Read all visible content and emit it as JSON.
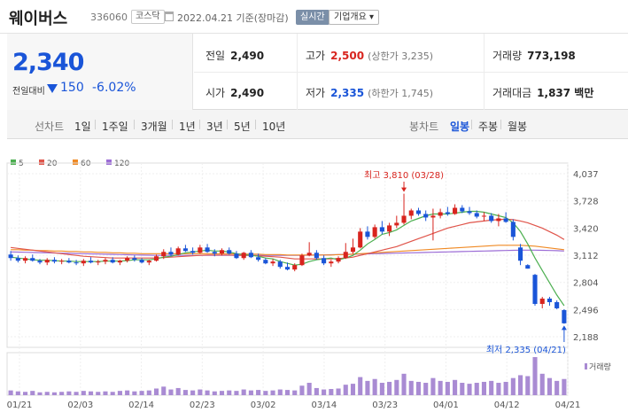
{
  "header": {
    "name": "웨이버스",
    "code": "336060",
    "market": "코스닥",
    "date": "2022.04.21 기준(장마감)",
    "realtime_label": "실시간",
    "company_info_label": "기업개요 ▾"
  },
  "price": {
    "current": "2,340",
    "change_label": "전일대비",
    "change": "150",
    "change_pct": "-6.02%",
    "prev_close_label": "전일",
    "prev_close": "2,490",
    "open_label": "시가",
    "open": "2,490",
    "high_label": "고가",
    "high": "2,500",
    "high_limit": "(상한가 3,235)",
    "low_label": "저가",
    "low": "2,335",
    "low_limit": "(하한가 1,745)",
    "volume_label": "거래량",
    "volume": "773,198",
    "amount_label": "거래대금",
    "amount": "1,837 백만"
  },
  "periods": {
    "line_label": "선차트",
    "line_items": [
      "1일",
      "1주일",
      "3개월",
      "1년",
      "3년",
      "5년",
      "10년"
    ],
    "candle_label": "봉차트",
    "candle_items": [
      "일봉",
      "주봉",
      "월봉"
    ],
    "active_candle": "일봉"
  },
  "colors": {
    "up": "#d8241e",
    "down": "#1a55d8",
    "ma5": "#4caf50",
    "ma20": "#e0544a",
    "ma60": "#f08a24",
    "ma120": "#9c6dd6",
    "volume": "#a98bd3"
  },
  "chart_data": {
    "type": "candlestick",
    "legend": [
      "5",
      "20",
      "60",
      "120"
    ],
    "y_ticks": [
      "4,037",
      "3,728",
      "3,420",
      "3,112",
      "2,804",
      "2,496",
      "2,188"
    ],
    "ylim": [
      2188,
      4037
    ],
    "x_ticks": [
      "01/21",
      "02/03",
      "02/14",
      "02/23",
      "03/02",
      "03/14",
      "03/23",
      "04/01",
      "04/12",
      "04/21"
    ],
    "high_annotation": "최고 3,810 (03/28)",
    "low_annotation": "최저 2,335 (04/21)",
    "volume_label": "거래량",
    "candles": [
      [
        3120,
        3160,
        3050,
        3080
      ],
      [
        3080,
        3110,
        3030,
        3050
      ],
      [
        3050,
        3100,
        3020,
        3080
      ],
      [
        3080,
        3120,
        3040,
        3050
      ],
      [
        3050,
        3070,
        3010,
        3030
      ],
      [
        3030,
        3080,
        3000,
        3060
      ],
      [
        3060,
        3090,
        3020,
        3040
      ],
      [
        3040,
        3070,
        3010,
        3050
      ],
      [
        3050,
        3080,
        3020,
        3030
      ],
      [
        3030,
        3060,
        3000,
        3020
      ],
      [
        3020,
        3070,
        2990,
        3050
      ],
      [
        3050,
        3090,
        3020,
        3030
      ],
      [
        3030,
        3060,
        3000,
        3040
      ],
      [
        3040,
        3080,
        3010,
        3060
      ],
      [
        3060,
        3090,
        3020,
        3030
      ],
      [
        3030,
        3060,
        3000,
        3050
      ],
      [
        3050,
        3100,
        3030,
        3080
      ],
      [
        3080,
        3110,
        3040,
        3060
      ],
      [
        3060,
        3080,
        3020,
        3030
      ],
      [
        3030,
        3060,
        3000,
        3050
      ],
      [
        3050,
        3120,
        3040,
        3100
      ],
      [
        3100,
        3180,
        3070,
        3150
      ],
      [
        3150,
        3200,
        3100,
        3120
      ],
      [
        3120,
        3210,
        3110,
        3190
      ],
      [
        3190,
        3230,
        3150,
        3160
      ],
      [
        3160,
        3200,
        3120,
        3140
      ],
      [
        3140,
        3230,
        3130,
        3200
      ],
      [
        3200,
        3240,
        3140,
        3150
      ],
      [
        3150,
        3180,
        3100,
        3130
      ],
      [
        3130,
        3190,
        3110,
        3170
      ],
      [
        3170,
        3200,
        3120,
        3130
      ],
      [
        3130,
        3160,
        3070,
        3080
      ],
      [
        3080,
        3150,
        3060,
        3140
      ],
      [
        3140,
        3170,
        3080,
        3090
      ],
      [
        3090,
        3130,
        3040,
        3060
      ],
      [
        3060,
        3080,
        3010,
        3020
      ],
      [
        3020,
        3070,
        2990,
        3040
      ],
      [
        3040,
        3060,
        2960,
        2980
      ],
      [
        2980,
        3030,
        2940,
        2950
      ],
      [
        2950,
        3020,
        2930,
        3000
      ],
      [
        3000,
        3130,
        2990,
        3110
      ],
      [
        3110,
        3260,
        3100,
        3140
      ],
      [
        3140,
        3170,
        3060,
        3080
      ],
      [
        3080,
        3110,
        3000,
        3020
      ],
      [
        3020,
        3060,
        2980,
        3040
      ],
      [
        3040,
        3100,
        3020,
        3080
      ],
      [
        3080,
        3250,
        3070,
        3150
      ],
      [
        3150,
        3300,
        3130,
        3200
      ],
      [
        3200,
        3420,
        3190,
        3380
      ],
      [
        3380,
        3440,
        3290,
        3320
      ],
      [
        3320,
        3460,
        3300,
        3430
      ],
      [
        3430,
        3500,
        3350,
        3380
      ],
      [
        3380,
        3480,
        3330,
        3450
      ],
      [
        3450,
        3560,
        3420,
        3480
      ],
      [
        3480,
        3810,
        3460,
        3560
      ],
      [
        3560,
        3640,
        3520,
        3620
      ],
      [
        3620,
        3650,
        3560,
        3580
      ],
      [
        3580,
        3620,
        3500,
        3540
      ],
      [
        3540,
        3640,
        3280,
        3560
      ],
      [
        3560,
        3640,
        3530,
        3600
      ],
      [
        3600,
        3660,
        3560,
        3580
      ],
      [
        3580,
        3690,
        3570,
        3650
      ],
      [
        3650,
        3680,
        3590,
        3610
      ],
      [
        3610,
        3660,
        3570,
        3590
      ],
      [
        3590,
        3620,
        3530,
        3550
      ],
      [
        3550,
        3600,
        3500,
        3560
      ],
      [
        3560,
        3590,
        3480,
        3500
      ],
      [
        3500,
        3580,
        3440,
        3530
      ],
      [
        3530,
        3600,
        3480,
        3490
      ],
      [
        3490,
        3520,
        3280,
        3320
      ],
      [
        3200,
        3240,
        3000,
        3050
      ],
      [
        3000,
        3010,
        2960,
        2960
      ],
      [
        2890,
        2900,
        2540,
        2560
      ],
      [
        2560,
        2640,
        2510,
        2620
      ],
      [
        2620,
        2640,
        2540,
        2580
      ],
      [
        2580,
        2600,
        2500,
        2510
      ],
      [
        2490,
        2500,
        2335,
        2340
      ]
    ],
    "ma5": [
      3090,
      3080,
      3070,
      3060,
      3055,
      3055,
      3050,
      3045,
      3045,
      3040,
      3040,
      3040,
      3040,
      3045,
      3045,
      3045,
      3050,
      3060,
      3060,
      3060,
      3070,
      3090,
      3100,
      3120,
      3140,
      3150,
      3160,
      3170,
      3160,
      3160,
      3150,
      3130,
      3120,
      3110,
      3100,
      3080,
      3070,
      3040,
      3020,
      3000,
      3010,
      3040,
      3060,
      3070,
      3080,
      3060,
      3080,
      3110,
      3170,
      3240,
      3290,
      3350,
      3370,
      3400,
      3450,
      3500,
      3530,
      3560,
      3580,
      3580,
      3580,
      3590,
      3600,
      3610,
      3610,
      3600,
      3580,
      3560,
      3540,
      3480,
      3380,
      3240,
      3080,
      2940,
      2800,
      2660,
      2540
    ],
    "ma20": [
      3200,
      3190,
      3180,
      3170,
      3160,
      3150,
      3140,
      3130,
      3120,
      3110,
      3100,
      3095,
      3090,
      3085,
      3080,
      3080,
      3080,
      3080,
      3080,
      3080,
      3080,
      3085,
      3090,
      3095,
      3100,
      3105,
      3110,
      3115,
      3115,
      3115,
      3115,
      3110,
      3110,
      3110,
      3105,
      3100,
      3095,
      3090,
      3080,
      3070,
      3070,
      3070,
      3070,
      3070,
      3070,
      3075,
      3080,
      3090,
      3110,
      3130,
      3150,
      3170,
      3190,
      3210,
      3240,
      3270,
      3300,
      3330,
      3360,
      3390,
      3420,
      3440,
      3460,
      3480,
      3490,
      3500,
      3510,
      3515,
      3520,
      3515,
      3500,
      3480,
      3450,
      3420,
      3380,
      3340,
      3290
    ],
    "ma60": [
      3175,
      3175,
      3170,
      3170,
      3165,
      3165,
      3160,
      3160,
      3155,
      3155,
      3150,
      3150,
      3145,
      3145,
      3140,
      3140,
      3135,
      3135,
      3130,
      3130,
      3130,
      3130,
      3130,
      3130,
      3130,
      3130,
      3130,
      3130,
      3130,
      3130,
      3130,
      3125,
      3125,
      3125,
      3125,
      3120,
      3120,
      3120,
      3115,
      3115,
      3115,
      3115,
      3115,
      3115,
      3115,
      3120,
      3120,
      3125,
      3130,
      3135,
      3140,
      3145,
      3150,
      3155,
      3160,
      3165,
      3170,
      3175,
      3180,
      3185,
      3190,
      3195,
      3200,
      3205,
      3210,
      3215,
      3220,
      3225,
      3225,
      3225,
      3225,
      3220,
      3215,
      3205,
      3195,
      3185,
      3175
    ],
    "ma120": [
      3150,
      3148,
      3146,
      3144,
      3142,
      3140,
      3138,
      3136,
      3134,
      3132,
      3130,
      3128,
      3126,
      3124,
      3122,
      3120,
      3118,
      3116,
      3114,
      3112,
      3110,
      3110,
      3110,
      3110,
      3110,
      3110,
      3110,
      3110,
      3110,
      3110,
      3110,
      3110,
      3110,
      3110,
      3110,
      3110,
      3110,
      3110,
      3110,
      3110,
      3110,
      3112,
      3114,
      3116,
      3118,
      3120,
      3122,
      3124,
      3126,
      3128,
      3130,
      3132,
      3134,
      3136,
      3138,
      3140,
      3142,
      3144,
      3146,
      3148,
      3150,
      3152,
      3154,
      3156,
      3158,
      3160,
      3162,
      3164,
      3166,
      3168,
      3170,
      3170,
      3170,
      3168,
      3166,
      3164,
      3160
    ],
    "volume": [
      10,
      8,
      7,
      9,
      6,
      7,
      6,
      7,
      8,
      7,
      9,
      8,
      7,
      8,
      7,
      9,
      10,
      8,
      9,
      10,
      14,
      18,
      12,
      15,
      11,
      10,
      12,
      10,
      8,
      9,
      10,
      9,
      12,
      10,
      11,
      9,
      10,
      12,
      11,
      10,
      20,
      26,
      15,
      12,
      13,
      14,
      22,
      24,
      38,
      30,
      34,
      26,
      28,
      32,
      45,
      30,
      28,
      26,
      36,
      30,
      28,
      32,
      26,
      24,
      26,
      28,
      30,
      26,
      28,
      36,
      42,
      40,
      80,
      45,
      36,
      30,
      34
    ]
  }
}
